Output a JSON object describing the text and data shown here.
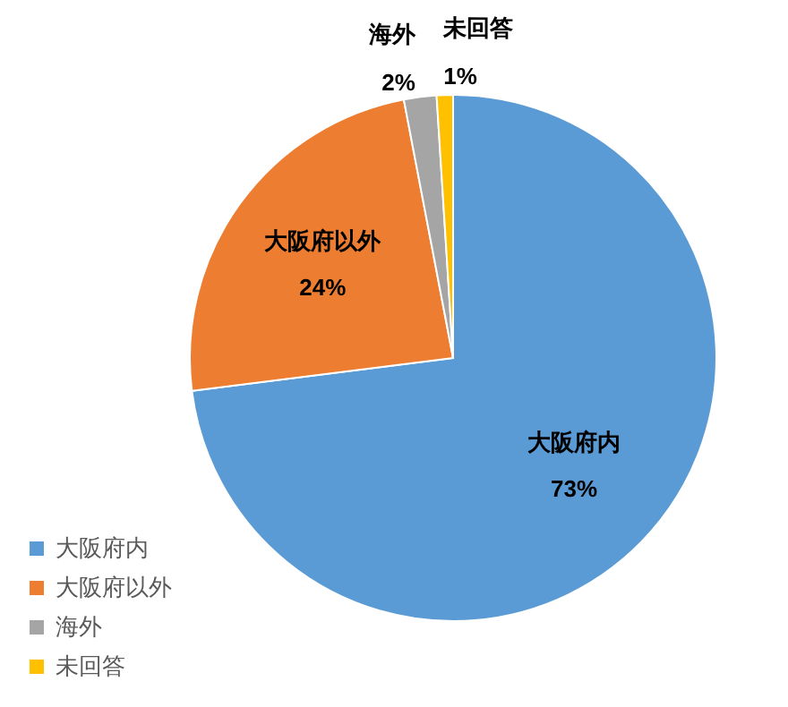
{
  "chart_data": {
    "type": "pie",
    "categories": [
      "大阪府内",
      "大阪府以外",
      "海外",
      "未回答"
    ],
    "values": [
      73,
      24,
      2,
      1
    ],
    "colors": [
      "#5b9bd5",
      "#ed7d31",
      "#a5a5a5",
      "#ffc000"
    ],
    "value_labels": [
      "73%",
      "24%",
      "2%",
      "1%"
    ],
    "legend": "bottom left"
  }
}
